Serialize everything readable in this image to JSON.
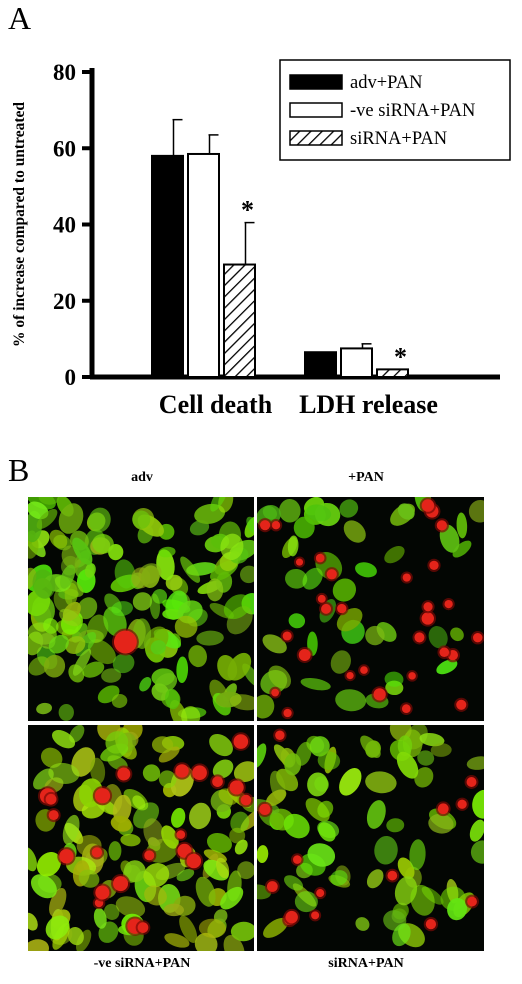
{
  "panel_a": {
    "letter": "A"
  },
  "panel_b": {
    "letter": "B",
    "images": [
      {
        "label": "adv"
      },
      {
        "label": "+PAN"
      },
      {
        "label": "-ve siRNA+PAN"
      },
      {
        "label": "siRNA+PAN"
      }
    ]
  },
  "chart_data": {
    "type": "bar",
    "categories": [
      "Cell death",
      "LDH release"
    ],
    "ylabel": "% of increase compared to untreated",
    "ylim": [
      0,
      80
    ],
    "yticks": [
      0,
      20,
      40,
      60,
      80
    ],
    "legend_position": "top-right",
    "series": [
      {
        "name": "adv+PAN",
        "values": [
          58,
          6.5
        ],
        "errors": [
          9.5,
          0
        ],
        "fill": "solid-black"
      },
      {
        "name": "-ve siRNA+PAN",
        "values": [
          58.5,
          7.5
        ],
        "errors": [
          5,
          1.2
        ],
        "fill": "white"
      },
      {
        "name": "siRNA+PAN",
        "values": [
          29.5,
          2
        ],
        "errors": [
          11,
          0
        ],
        "fill": "hatched"
      }
    ],
    "annotations": [
      {
        "text": "*",
        "category": "Cell death",
        "series": "siRNA+PAN"
      },
      {
        "text": "*",
        "category": "LDH release",
        "series": "siRNA+PAN"
      }
    ]
  }
}
